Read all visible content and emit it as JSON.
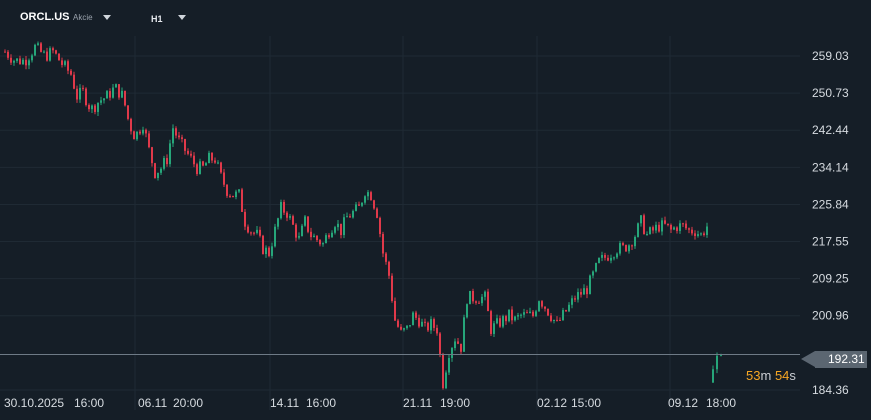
{
  "toolbar": {
    "symbol": "ORCL.US",
    "instrument_type": "Akcie",
    "timeframe": "H1"
  },
  "current_price": {
    "label": "192.31",
    "value": 192.31,
    "line_color": "#6e7a86",
    "tag_color": "#5b6671"
  },
  "countdown": {
    "minutes": "53",
    "minutes_unit": "m",
    "seconds": "54",
    "seconds_unit": "s",
    "color": "#f5a623"
  },
  "colors": {
    "background": "#151e27",
    "grid": "#1f2a34",
    "up": "#26a67a",
    "down": "#e0394a",
    "axis_text": "#d6dbe0"
  },
  "chart_data": {
    "type": "candlestick",
    "y_axis_labels": [
      "259.03",
      "250.73",
      "242.44",
      "234.14",
      "225.84",
      "217.55",
      "209.25",
      "200.96",
      "184.36"
    ],
    "y_axis_values": [
      259.03,
      250.73,
      242.44,
      234.14,
      225.84,
      217.55,
      209.25,
      200.96,
      184.36
    ],
    "x_axis_labels": [
      {
        "date": "30.10.2025",
        "time": "16:00"
      },
      {
        "date": "06.11",
        "time": "20:00"
      },
      {
        "date": "14.11",
        "time": "16:00"
      },
      {
        "date": "21.11",
        "time": "19:00"
      },
      {
        "date": "02.12",
        "time": "15:00"
      },
      {
        "date": "09.12",
        "time": "18:00"
      }
    ],
    "close_path": [
      [
        0,
        260
      ],
      [
        10,
        258
      ],
      [
        20,
        258
      ],
      [
        30,
        261
      ],
      [
        40,
        259
      ],
      [
        48,
        260
      ],
      [
        58,
        257
      ],
      [
        66,
        255
      ],
      [
        72,
        250
      ],
      [
        78,
        251
      ],
      [
        86,
        247
      ],
      [
        94,
        249
      ],
      [
        102,
        250
      ],
      [
        110,
        252
      ],
      [
        118,
        250
      ],
      [
        124,
        244
      ],
      [
        130,
        241
      ],
      [
        138,
        244
      ],
      [
        144,
        238
      ],
      [
        150,
        233
      ],
      [
        156,
        234
      ],
      [
        162,
        236
      ],
      [
        168,
        243
      ],
      [
        174,
        240
      ],
      [
        180,
        238
      ],
      [
        186,
        236
      ],
      [
        192,
        234
      ],
      [
        198,
        234
      ],
      [
        204,
        236
      ],
      [
        210,
        236
      ],
      [
        216,
        232
      ],
      [
        222,
        229
      ],
      [
        228,
        228
      ],
      [
        234,
        228
      ],
      [
        240,
        222
      ],
      [
        246,
        220
      ],
      [
        252,
        219
      ],
      [
        258,
        216
      ],
      [
        264,
        215
      ],
      [
        270,
        220
      ],
      [
        276,
        225
      ],
      [
        282,
        224
      ],
      [
        288,
        221
      ],
      [
        294,
        218
      ],
      [
        300,
        222
      ],
      [
        306,
        219
      ],
      [
        312,
        218
      ],
      [
        318,
        217
      ],
      [
        324,
        220
      ],
      [
        330,
        222
      ],
      [
        336,
        220
      ],
      [
        342,
        223
      ],
      [
        348,
        224
      ],
      [
        354,
        225
      ],
      [
        360,
        229
      ],
      [
        366,
        228
      ],
      [
        372,
        224
      ],
      [
        378,
        215
      ],
      [
        384,
        210
      ],
      [
        390,
        200
      ],
      [
        396,
        197
      ],
      [
        402,
        198
      ],
      [
        408,
        201
      ],
      [
        414,
        200
      ],
      [
        420,
        198
      ],
      [
        426,
        199
      ],
      [
        432,
        198
      ],
      [
        438,
        186
      ],
      [
        444,
        193
      ],
      [
        450,
        196
      ],
      [
        456,
        194
      ],
      [
        462,
        205
      ],
      [
        468,
        205
      ],
      [
        474,
        205
      ],
      [
        480,
        205
      ],
      [
        486,
        198
      ],
      [
        492,
        199
      ],
      [
        498,
        200
      ],
      [
        504,
        201
      ],
      [
        510,
        200
      ],
      [
        516,
        201
      ],
      [
        522,
        201
      ],
      [
        528,
        201
      ],
      [
        534,
        205
      ],
      [
        540,
        203
      ],
      [
        546,
        201
      ],
      [
        552,
        199
      ],
      [
        558,
        201
      ],
      [
        564,
        203
      ],
      [
        570,
        205
      ],
      [
        576,
        206
      ],
      [
        582,
        207
      ],
      [
        588,
        210
      ],
      [
        594,
        213
      ],
      [
        600,
        214
      ],
      [
        606,
        215
      ],
      [
        612,
        216
      ],
      [
        618,
        216
      ],
      [
        624,
        217
      ],
      [
        630,
        219
      ],
      [
        636,
        222
      ],
      [
        642,
        219
      ],
      [
        648,
        220
      ],
      [
        654,
        221
      ],
      [
        660,
        221
      ],
      [
        666,
        220
      ],
      [
        672,
        221
      ],
      [
        678,
        221
      ],
      [
        684,
        220
      ],
      [
        690,
        220
      ],
      [
        696,
        219
      ],
      [
        702,
        221
      ]
    ],
    "isolated_candles": [
      [
        708,
        189
      ],
      [
        712,
        192
      ],
      [
        716,
        192.31
      ]
    ],
    "ylim": [
      182,
      264
    ],
    "grid": true
  }
}
